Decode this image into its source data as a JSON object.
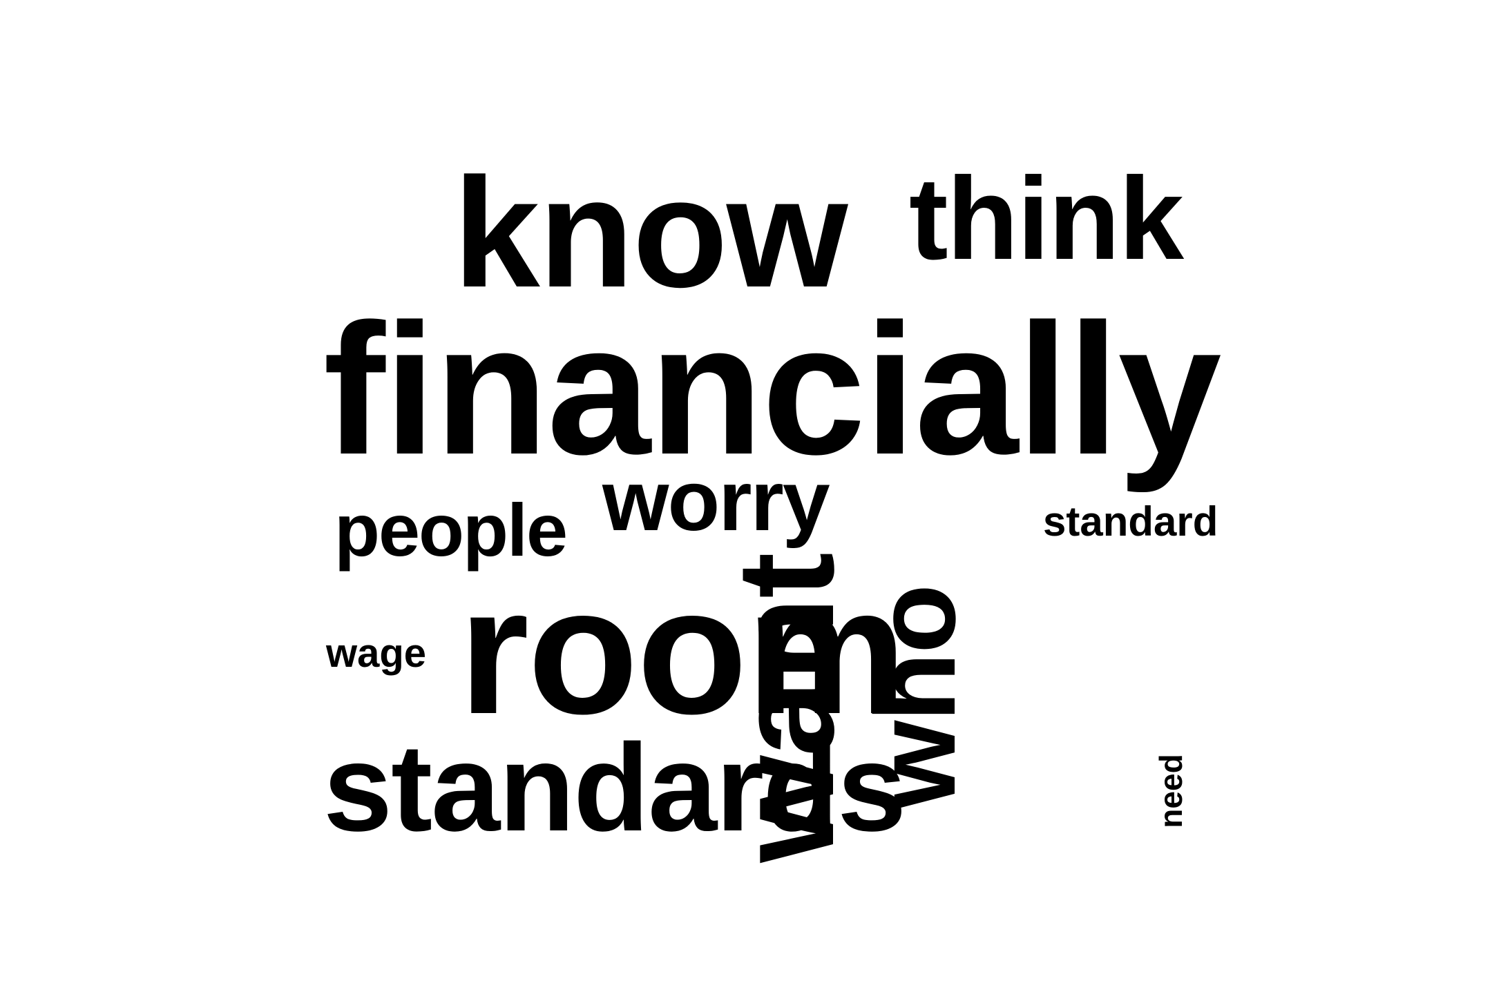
{
  "words": {
    "know": "know",
    "think": "think",
    "financially": "financially",
    "worry": "worry",
    "people": "people",
    "standard": "standard",
    "wage": "wage",
    "room": "room",
    "standards": "standards",
    "want": "want",
    "who": "who",
    "need": "need"
  },
  "colors": {
    "background": "#ffffff",
    "text": "#000000"
  }
}
